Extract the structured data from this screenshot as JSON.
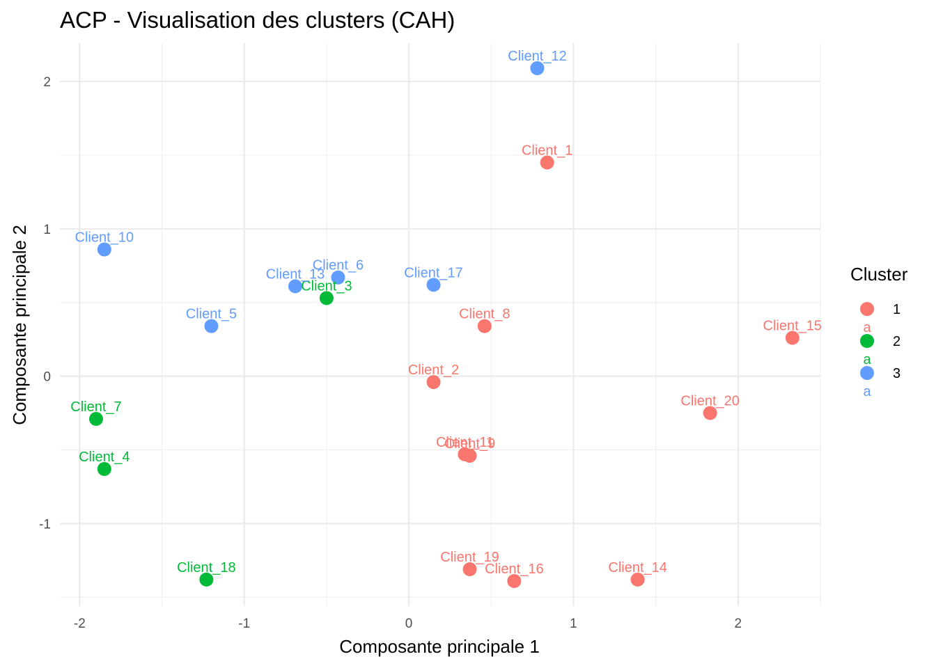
{
  "chart_data": {
    "type": "scatter",
    "title": "ACP - Visualisation des clusters (CAH)",
    "xlabel": "Composante principale 1",
    "ylabel": "Composante principale 2",
    "xlim": [
      -2.12,
      2.5
    ],
    "ylim": [
      -1.56,
      2.26
    ],
    "x_ticks": [
      -2,
      -1,
      0,
      1,
      2
    ],
    "y_ticks": [
      -1,
      0,
      1,
      2
    ],
    "x_tick_labels": [
      "-2",
      "-1",
      "0",
      "1",
      "2"
    ],
    "y_tick_labels": [
      "-1",
      "0",
      "1",
      "2"
    ],
    "grid": true,
    "legend": {
      "title": "Cluster",
      "position": "right",
      "key_glyph": "a",
      "entries": [
        {
          "label": "1",
          "color": "#F8766D"
        },
        {
          "label": "2",
          "color": "#00BA38"
        },
        {
          "label": "3",
          "color": "#619CFF"
        }
      ]
    },
    "colors": {
      "1": "#F8766D",
      "2": "#00BA38",
      "3": "#619CFF"
    },
    "points": [
      {
        "label": "Client_1",
        "x": 0.84,
        "y": 1.45,
        "cluster": "1"
      },
      {
        "label": "Client_2",
        "x": 0.15,
        "y": -0.04,
        "cluster": "1"
      },
      {
        "label": "Client_3",
        "x": -0.5,
        "y": 0.53,
        "cluster": "2"
      },
      {
        "label": "Client_4",
        "x": -1.85,
        "y": -0.63,
        "cluster": "2"
      },
      {
        "label": "Client_5",
        "x": -1.2,
        "y": 0.34,
        "cluster": "3"
      },
      {
        "label": "Client_6",
        "x": -0.43,
        "y": 0.67,
        "cluster": "3"
      },
      {
        "label": "Client_7",
        "x": -1.9,
        "y": -0.29,
        "cluster": "2"
      },
      {
        "label": "Client_8",
        "x": 0.46,
        "y": 0.34,
        "cluster": "1"
      },
      {
        "label": "Client_9",
        "x": 0.37,
        "y": -0.54,
        "cluster": "1"
      },
      {
        "label": "Client_10",
        "x": -1.85,
        "y": 0.86,
        "cluster": "3"
      },
      {
        "label": "Client_11",
        "x": 0.34,
        "y": -0.53,
        "cluster": "1"
      },
      {
        "label": "Client_12",
        "x": 0.78,
        "y": 2.09,
        "cluster": "3"
      },
      {
        "label": "Client_13",
        "x": -0.69,
        "y": 0.61,
        "cluster": "3"
      },
      {
        "label": "Client_14",
        "x": 1.39,
        "y": -1.38,
        "cluster": "1"
      },
      {
        "label": "Client_15",
        "x": 2.33,
        "y": 0.26,
        "cluster": "1"
      },
      {
        "label": "Client_16",
        "x": 0.64,
        "y": -1.39,
        "cluster": "1"
      },
      {
        "label": "Client_17",
        "x": 0.15,
        "y": 0.62,
        "cluster": "3"
      },
      {
        "label": "Client_18",
        "x": -1.23,
        "y": -1.38,
        "cluster": "2"
      },
      {
        "label": "Client_19",
        "x": 0.37,
        "y": -1.31,
        "cluster": "1"
      },
      {
        "label": "Client_20",
        "x": 1.83,
        "y": -0.25,
        "cluster": "1"
      }
    ]
  }
}
